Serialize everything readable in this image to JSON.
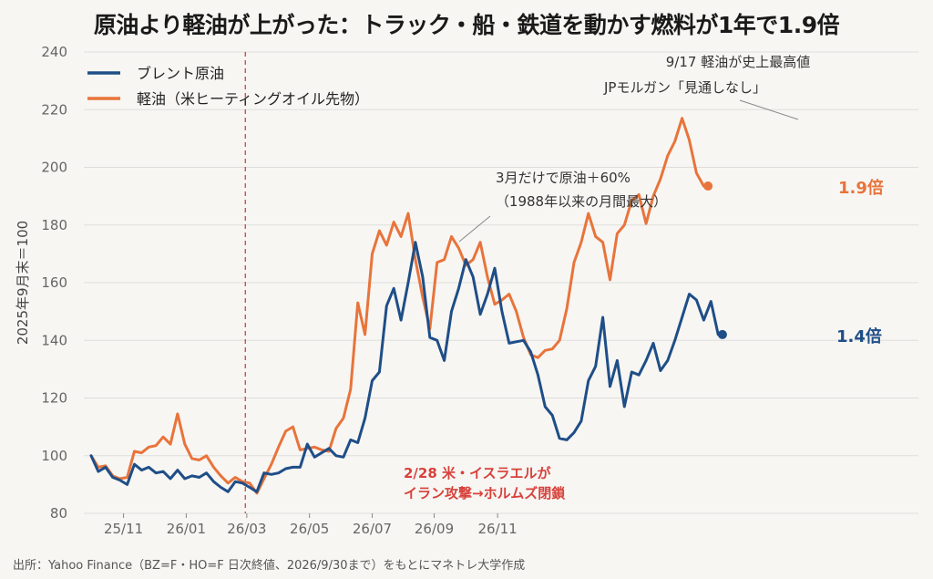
{
  "title": "原油より軽油が上がった：トラック・船・鉄道を動かす燃料が1年で1.9倍",
  "source": "出所：Yahoo Finance（BZ=F・HO=F 日次終値、2026/9/30まで）をもとにマネトレ大学作成",
  "colors": {
    "brent": "#1f4e87",
    "diesel": "#e8743b",
    "event": "#d8413b",
    "grid": "#dddddd"
  },
  "chart_data": {
    "type": "line",
    "ylabel": "2025年9月末＝100",
    "ylim": [
      80,
      240
    ],
    "yticks": [
      80,
      100,
      120,
      140,
      160,
      180,
      200,
      220,
      240
    ],
    "xticks": [
      "25/11",
      "26/01",
      "26/03",
      "26/05",
      "26/07",
      "26/09",
      "26/11"
    ],
    "x_index_note": "x is week index from 2025/09/30 (0) ; 26/03 at week 21.6",
    "series": [
      {
        "name": "ブレント原油",
        "key": "brent",
        "values": [
          100,
          94.5,
          96,
          92.5,
          91.5,
          90,
          97,
          95,
          96,
          94,
          94.5,
          92,
          95,
          92,
          93,
          92.5,
          94,
          91,
          89,
          87.5,
          91,
          90.5,
          89,
          87.5,
          94,
          93.5,
          94,
          95.5,
          96,
          96,
          104,
          99.5,
          101,
          102.5,
          100,
          99.5,
          105.5,
          104.5,
          113,
          126,
          129,
          152,
          158,
          147,
          160,
          174,
          162,
          141,
          140,
          133,
          150,
          158,
          168,
          162,
          149,
          156,
          165,
          150,
          139,
          139.5,
          140,
          136,
          128,
          117,
          114,
          106,
          105.5,
          108,
          112,
          126,
          131,
          148,
          124,
          133,
          117,
          129,
          128,
          133,
          139,
          129.5,
          133,
          140,
          148,
          156,
          154,
          147,
          153.5,
          142
        ]
      },
      {
        "name": "軽油（米ヒーティングオイル先物）",
        "key": "diesel",
        "values": [
          100,
          96,
          96.5,
          93,
          92,
          92.5,
          101.5,
          101,
          103,
          103.5,
          106.5,
          104,
          114.5,
          104,
          99,
          98.5,
          100,
          96,
          93,
          90.5,
          92.5,
          91,
          90.5,
          87,
          92,
          97,
          103,
          108.5,
          110,
          102,
          102.5,
          103,
          102,
          101.5,
          109.5,
          113,
          123,
          153,
          142,
          170,
          178,
          173,
          181,
          176,
          184,
          168,
          155,
          144,
          167,
          168,
          176,
          172,
          166,
          168,
          174,
          162,
          152.5,
          154,
          156,
          150,
          141,
          135,
          134,
          136.5,
          137,
          140,
          151,
          167,
          174,
          184,
          176,
          174,
          161,
          177,
          180,
          188.5,
          190.5,
          180.5,
          190,
          196,
          204,
          209,
          217,
          209.5,
          198,
          193.5
        ]
      }
    ],
    "end_labels": {
      "brent": "1.4倍",
      "diesel": "1.9倍"
    },
    "annotations": [
      {
        "lines": [
          "9/17 軽油が史上最高値",
          "JPモルガン「見通しなし」"
        ]
      },
      {
        "lines": [
          "3月だけで原油＋60%",
          "（1988年以来の月間最大）"
        ]
      }
    ],
    "event": {
      "lines": [
        "2/28 米・イスラエルが",
        "イラン攻撃→ホルムズ閉鎖"
      ]
    }
  }
}
